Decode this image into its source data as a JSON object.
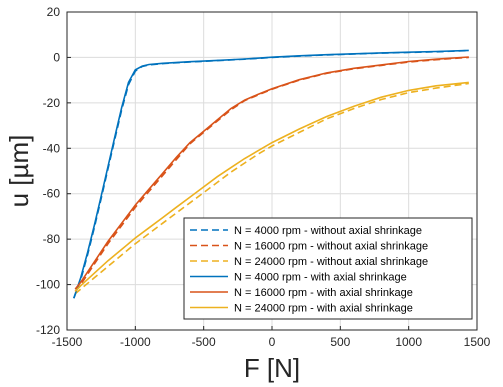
{
  "chart_data": {
    "type": "line",
    "xlabel": "F [N]",
    "ylabel": "u [µm]",
    "xlim": [
      -1500,
      1500
    ],
    "ylim": [
      -120,
      20
    ],
    "xticks": [
      "-1500",
      "-1000",
      "-500",
      "0",
      "500",
      "1000",
      "1500"
    ],
    "yticks": [
      "20",
      "0",
      "-20",
      "-40",
      "-60",
      "-80",
      "-100",
      "-120"
    ],
    "grid": true,
    "legend_position": "bottom-right",
    "series": [
      {
        "name": "N = 4000 rpm - without axial shrinkage",
        "color": "#0072BD",
        "dash": true,
        "x": [
          -1450,
          -1400,
          -1350,
          -1300,
          -1250,
          -1200,
          -1150,
          -1100,
          -1050,
          -1000,
          -950,
          -900,
          -800,
          -600,
          -400,
          -200,
          0,
          200,
          400,
          600,
          800,
          1000,
          1200,
          1440
        ],
        "y": [
          -106,
          -98,
          -87,
          -75,
          -62,
          -49,
          -36,
          -23,
          -12,
          -6,
          -4,
          -3.3,
          -2.7,
          -2,
          -1.4,
          -0.8,
          0,
          0.6,
          1.1,
          1.5,
          1.9,
          2.2,
          2.5,
          3
        ]
      },
      {
        "name": "N = 16000 rpm - without axial shrinkage",
        "color": "#D95319",
        "dash": true,
        "x": [
          -1440,
          -1400,
          -1300,
          -1200,
          -1100,
          -1000,
          -900,
          -800,
          -700,
          -600,
          -500,
          -400,
          -300,
          -200,
          -100,
          0,
          200,
          400,
          600,
          800,
          1000,
          1200,
          1440
        ],
        "y": [
          -103,
          -100,
          -91,
          -82,
          -74,
          -66,
          -59,
          -52,
          -45,
          -38,
          -33,
          -28,
          -23,
          -19,
          -16.5,
          -14,
          -10,
          -7,
          -5,
          -3.5,
          -2,
          -1,
          0
        ]
      },
      {
        "name": "N = 24000 rpm - without axial shrinkage",
        "color": "#EDB120",
        "dash": true,
        "x": [
          -1440,
          -1400,
          -1300,
          -1200,
          -1100,
          -1000,
          -900,
          -800,
          -700,
          -600,
          -500,
          -400,
          -300,
          -200,
          -100,
          0,
          200,
          400,
          600,
          800,
          1000,
          1200,
          1440
        ],
        "y": [
          -104,
          -102,
          -97,
          -92,
          -87,
          -82,
          -77.5,
          -73,
          -68.5,
          -64,
          -59.5,
          -55,
          -50.5,
          -46.5,
          -42.5,
          -39,
          -33,
          -27,
          -22.5,
          -18.5,
          -15.5,
          -13.5,
          -11.5
        ]
      },
      {
        "name": "N = 4000 rpm - with axial shrinkage",
        "color": "#0072BD",
        "dash": false,
        "x": [
          -1450,
          -1400,
          -1350,
          -1300,
          -1250,
          -1200,
          -1150,
          -1100,
          -1050,
          -1000,
          -950,
          -900,
          -800,
          -600,
          -400,
          -200,
          0,
          200,
          400,
          600,
          800,
          1000,
          1200,
          1440
        ],
        "y": [
          -106,
          -97,
          -86,
          -74,
          -61,
          -48,
          -35,
          -22,
          -11,
          -5.5,
          -3.8,
          -3.1,
          -2.6,
          -1.9,
          -1.3,
          -0.7,
          0.1,
          0.7,
          1.2,
          1.6,
          2,
          2.3,
          2.6,
          3.1
        ]
      },
      {
        "name": "N = 16000 rpm - with axial shrinkage",
        "color": "#D95319",
        "dash": false,
        "x": [
          -1440,
          -1400,
          -1300,
          -1200,
          -1100,
          -1000,
          -900,
          -800,
          -700,
          -600,
          -500,
          -400,
          -300,
          -200,
          -100,
          0,
          200,
          400,
          600,
          800,
          1000,
          1200,
          1440
        ],
        "y": [
          -102,
          -99,
          -90,
          -81,
          -73,
          -65,
          -58,
          -51,
          -44,
          -37.5,
          -32.5,
          -27.5,
          -22.5,
          -18.8,
          -16.2,
          -13.8,
          -9.8,
          -6.8,
          -4.8,
          -3.3,
          -1.8,
          -0.8,
          0.2
        ]
      },
      {
        "name": "N = 24000 rpm - with axial shrinkage",
        "color": "#EDB120",
        "dash": false,
        "x": [
          -1440,
          -1400,
          -1300,
          -1200,
          -1100,
          -1000,
          -900,
          -800,
          -700,
          -600,
          -500,
          -400,
          -300,
          -200,
          -100,
          0,
          200,
          400,
          600,
          800,
          1000,
          1200,
          1440
        ],
        "y": [
          -103,
          -100.5,
          -95,
          -89.5,
          -84.5,
          -79.5,
          -75,
          -70.5,
          -66,
          -61.5,
          -57,
          -52.5,
          -48.5,
          -44.5,
          -41,
          -37.5,
          -31.5,
          -26,
          -21.5,
          -17.5,
          -14.5,
          -12.5,
          -11
        ]
      }
    ]
  }
}
